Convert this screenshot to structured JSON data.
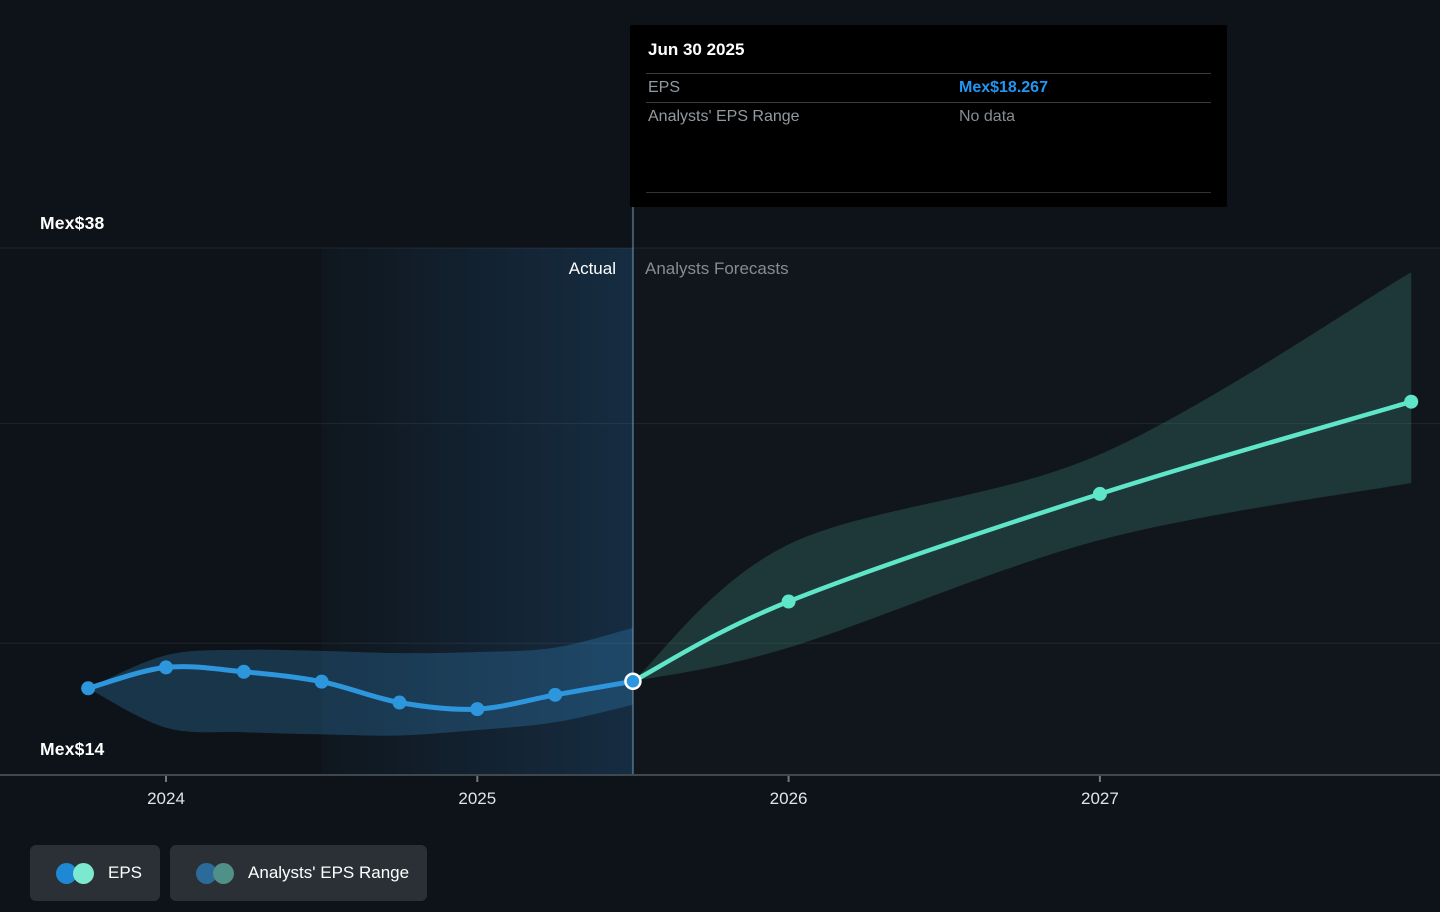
{
  "tooltip": {
    "title": "Jun 30 2025",
    "rows": [
      {
        "label": "EPS",
        "value": "Mex$18.267"
      },
      {
        "label": "Analysts' EPS Range",
        "value": "No data"
      }
    ]
  },
  "labels": {
    "y_top": "Mex$38",
    "y_bottom": "Mex$14",
    "actual": "Actual",
    "forecast": "Analysts Forecasts"
  },
  "legend": [
    {
      "label": "EPS",
      "dot1": "#1e88d4",
      "dot2": "#7ce8d0"
    },
    {
      "label": "Analysts' EPS Range",
      "dot1": "#2c6b99",
      "dot2": "#4f9089"
    }
  ],
  "chart_data": {
    "type": "line",
    "title": "EPS actual vs analysts forecast",
    "currency_prefix": "Mex$",
    "ylim": [
      14,
      38
    ],
    "y_labeled_values": [
      38,
      14
    ],
    "y_gridline_values": [
      38,
      30,
      20
    ],
    "x_ticks": [
      {
        "label": "2024",
        "t": 2024
      },
      {
        "label": "2025",
        "t": 2025
      },
      {
        "label": "2026",
        "t": 2026
      },
      {
        "label": "2027",
        "t": 2027
      }
    ],
    "divider_t": 2025.5,
    "highlight_region": {
      "from_t": 2024.5,
      "to_t": 2025.5
    },
    "series": [
      {
        "name": "EPS",
        "kind": "actual",
        "color": "#2d96dc",
        "band_color": "rgba(58,150,215,0.26)",
        "x_t": [
          2023.75,
          2024.0,
          2024.25,
          2024.5,
          2024.75,
          2025.0,
          2025.25,
          2025.5
        ],
        "values": [
          17.95,
          18.9,
          18.7,
          18.25,
          17.3,
          17.0,
          17.65,
          18.267
        ],
        "band_top": [
          17.95,
          19.45,
          19.7,
          19.65,
          19.55,
          19.6,
          19.8,
          20.7
        ],
        "band_bottom": [
          17.95,
          16.15,
          15.95,
          15.85,
          15.8,
          16.05,
          16.4,
          17.2
        ]
      },
      {
        "name": "Analysts Forecast EPS",
        "kind": "forecast",
        "color": "#5fe5c8",
        "band_color": "rgba(100,232,204,0.16)",
        "x_t": [
          2025.5,
          2026.0,
          2027.0,
          2028.0
        ],
        "values": [
          18.267,
          21.9,
          26.8,
          31.0
        ],
        "band_top": [
          18.267,
          24.5,
          28.6,
          36.9
        ],
        "band_bottom": [
          18.267,
          19.8,
          24.7,
          27.3
        ]
      }
    ],
    "highlighted_point": {
      "t": 2025.5,
      "value": 18.267,
      "series": "EPS"
    }
  }
}
